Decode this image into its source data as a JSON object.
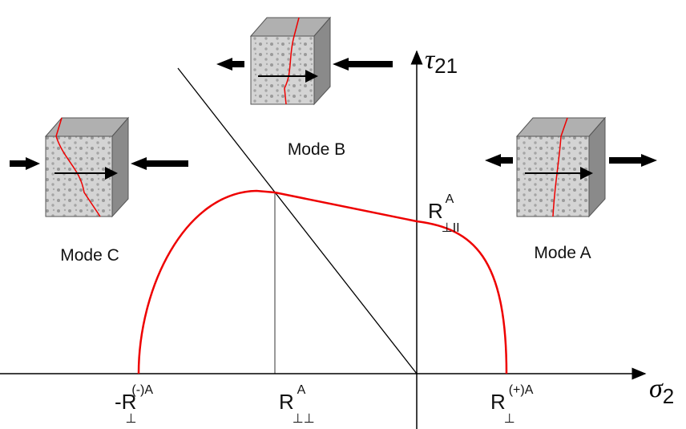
{
  "axes": {
    "x_label": {
      "base": "σ",
      "sub": "2"
    },
    "y_label": {
      "base": "τ",
      "sub": "21"
    }
  },
  "modes": {
    "a": "Mode A",
    "b": "Mode B",
    "c": "Mode C"
  },
  "strengths": {
    "compression": {
      "base": "-R",
      "sub": "⊥",
      "sup": "(-)A"
    },
    "perp_perp": {
      "base": "R",
      "sub": "⊥⊥",
      "sup": "A"
    },
    "tension": {
      "base": "R",
      "sub": "⊥",
      "sup": "(+)A"
    },
    "shear": {
      "base": "R",
      "sub": "⊥II",
      "sup": "A"
    }
  }
}
